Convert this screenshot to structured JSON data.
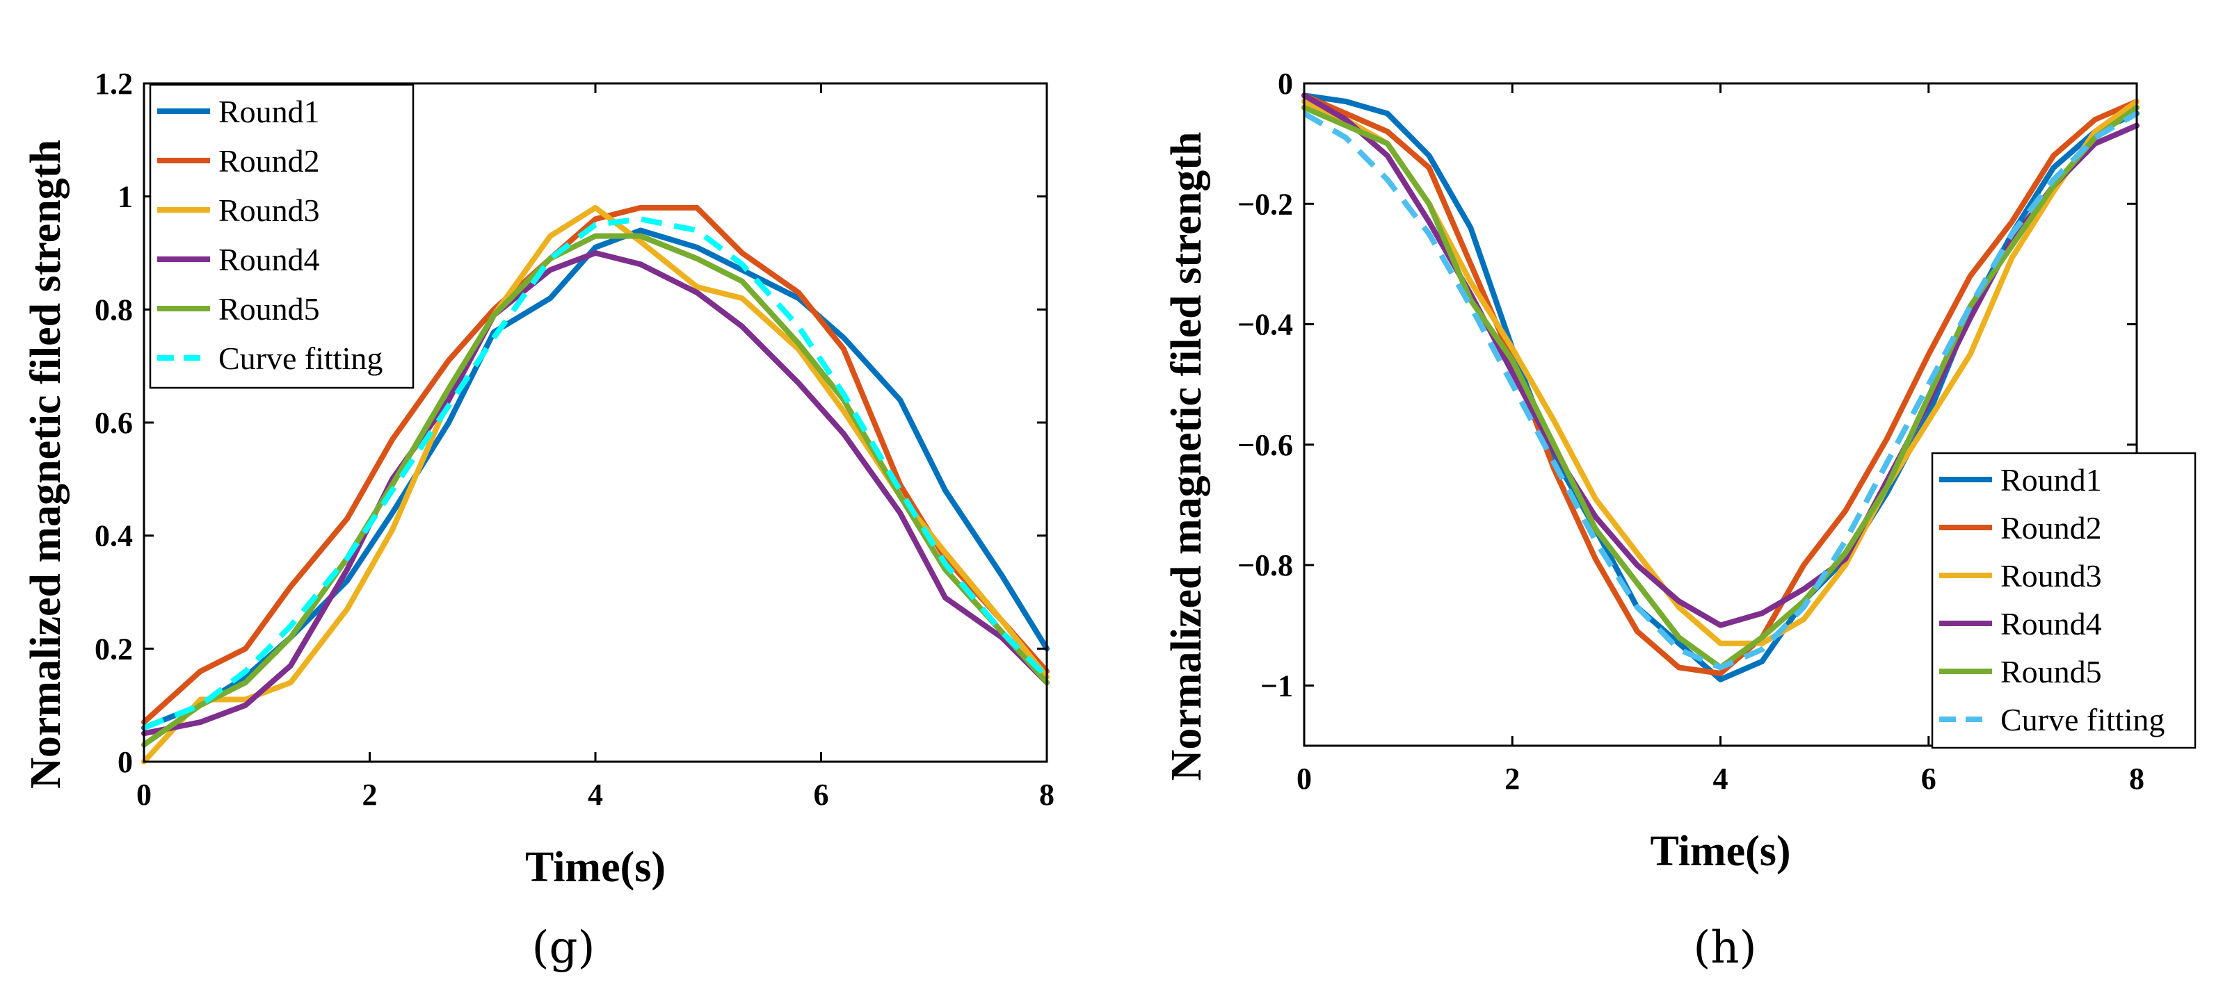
{
  "colors": {
    "round1": "#0072BD",
    "round2": "#D95319",
    "round3": "#EDB120",
    "round4": "#7E2F8E",
    "round5": "#77AC30"
  },
  "chart_data": [
    {
      "id": "g",
      "type": "line",
      "caption": "(g)",
      "xlabel": "Time(s)",
      "ylabel": "Normalized magnetic filed strength",
      "xlim": [
        0,
        8
      ],
      "ylim": [
        0,
        1.2
      ],
      "xticks": [
        0,
        2,
        4,
        6,
        8
      ],
      "xtick_labels": [
        "0",
        "2",
        "4",
        "6",
        "8"
      ],
      "yticks": [
        0,
        0.2,
        0.4,
        0.6,
        0.8,
        1,
        1.2
      ],
      "ytick_labels": [
        "0",
        "0.2",
        "0.4",
        "0.6",
        "0.8",
        "1",
        "1.2"
      ],
      "legend_position": "top-left",
      "series": [
        {
          "name": "Round1",
          "color": "#0072BD",
          "style": "solid",
          "x": [
            0,
            0.5,
            0.9,
            1.3,
            1.8,
            2.2,
            2.7,
            3.1,
            3.6,
            4.0,
            4.4,
            4.9,
            5.3,
            5.8,
            6.2,
            6.7,
            7.1,
            7.6,
            8.0
          ],
          "y": [
            0.06,
            0.1,
            0.15,
            0.22,
            0.32,
            0.44,
            0.6,
            0.76,
            0.82,
            0.91,
            0.94,
            0.91,
            0.87,
            0.82,
            0.75,
            0.64,
            0.48,
            0.33,
            0.2
          ]
        },
        {
          "name": "Round2",
          "color": "#D95319",
          "style": "solid",
          "x": [
            0,
            0.5,
            0.9,
            1.3,
            1.8,
            2.2,
            2.7,
            3.1,
            3.6,
            4.0,
            4.4,
            4.9,
            5.3,
            5.8,
            6.2,
            6.7,
            7.1,
            7.6,
            8.0
          ],
          "y": [
            0.07,
            0.16,
            0.2,
            0.31,
            0.43,
            0.57,
            0.71,
            0.8,
            0.89,
            0.96,
            0.98,
            0.98,
            0.9,
            0.83,
            0.73,
            0.49,
            0.36,
            0.25,
            0.16
          ]
        },
        {
          "name": "Round3",
          "color": "#EDB120",
          "style": "solid",
          "x": [
            0,
            0.5,
            0.9,
            1.3,
            1.8,
            2.2,
            2.7,
            3.1,
            3.6,
            4.0,
            4.4,
            4.9,
            5.3,
            5.8,
            6.2,
            6.7,
            7.1,
            7.6,
            8.0
          ],
          "y": [
            0.0,
            0.11,
            0.11,
            0.14,
            0.27,
            0.41,
            0.64,
            0.79,
            0.93,
            0.98,
            0.92,
            0.84,
            0.82,
            0.73,
            0.62,
            0.47,
            0.37,
            0.25,
            0.15
          ]
        },
        {
          "name": "Round4",
          "color": "#7E2F8E",
          "style": "solid",
          "x": [
            0,
            0.5,
            0.9,
            1.3,
            1.8,
            2.2,
            2.7,
            3.1,
            3.6,
            4.0,
            4.4,
            4.9,
            5.3,
            5.8,
            6.2,
            6.7,
            7.1,
            7.6,
            8.0
          ],
          "y": [
            0.05,
            0.07,
            0.1,
            0.17,
            0.34,
            0.5,
            0.64,
            0.79,
            0.87,
            0.9,
            0.88,
            0.83,
            0.77,
            0.67,
            0.58,
            0.44,
            0.29,
            0.22,
            0.14
          ]
        },
        {
          "name": "Round5",
          "color": "#77AC30",
          "style": "solid",
          "x": [
            0,
            0.5,
            0.9,
            1.3,
            1.8,
            2.2,
            2.7,
            3.1,
            3.6,
            4.0,
            4.4,
            4.9,
            5.3,
            5.8,
            6.2,
            6.7,
            7.1,
            7.6,
            8.0
          ],
          "y": [
            0.03,
            0.1,
            0.14,
            0.22,
            0.36,
            0.49,
            0.66,
            0.79,
            0.89,
            0.93,
            0.93,
            0.89,
            0.85,
            0.74,
            0.64,
            0.47,
            0.34,
            0.23,
            0.14
          ]
        },
        {
          "name": "Curve fitting",
          "color": "#00FFFF",
          "style": "dashed",
          "x": [
            0,
            0.5,
            0.9,
            1.3,
            1.8,
            2.2,
            2.7,
            3.1,
            3.6,
            4.0,
            4.4,
            4.9,
            5.3,
            5.8,
            6.2,
            6.7,
            7.1,
            7.6,
            8.0
          ],
          "y": [
            0.06,
            0.1,
            0.16,
            0.24,
            0.36,
            0.48,
            0.63,
            0.75,
            0.89,
            0.95,
            0.96,
            0.94,
            0.88,
            0.77,
            0.65,
            0.48,
            0.35,
            0.23,
            0.15
          ]
        }
      ]
    },
    {
      "id": "h",
      "type": "line",
      "caption": "(h)",
      "xlabel": "Time(s)",
      "ylabel": "Normalized magnetic filed strength",
      "xlim": [
        0,
        8
      ],
      "ylim": [
        -1.1,
        0
      ],
      "xticks": [
        0,
        2,
        4,
        6,
        8
      ],
      "xtick_labels": [
        "0",
        "2",
        "4",
        "6",
        "8"
      ],
      "yticks": [
        0,
        -0.2,
        -0.4,
        -0.6,
        -0.8,
        -1
      ],
      "ytick_labels": [
        "0",
        "−0.2",
        "−0.4",
        "−0.6",
        "−0.8",
        "−1"
      ],
      "legend_position": "bottom-right",
      "series": [
        {
          "name": "Round1",
          "color": "#0072BD",
          "style": "solid",
          "x": [
            0,
            0.4,
            0.8,
            1.2,
            1.6,
            2.0,
            2.4,
            2.8,
            3.2,
            3.6,
            4.0,
            4.4,
            4.8,
            5.2,
            5.6,
            6.0,
            6.4,
            6.8,
            7.2,
            7.6,
            8.0
          ],
          "y": [
            -0.02,
            -0.03,
            -0.05,
            -0.12,
            -0.24,
            -0.44,
            -0.62,
            -0.74,
            -0.87,
            -0.93,
            -0.99,
            -0.96,
            -0.86,
            -0.79,
            -0.68,
            -0.55,
            -0.38,
            -0.25,
            -0.14,
            -0.08,
            -0.05
          ]
        },
        {
          "name": "Round2",
          "color": "#D95319",
          "style": "solid",
          "x": [
            0,
            0.4,
            0.8,
            1.2,
            1.6,
            2.0,
            2.4,
            2.8,
            3.2,
            3.6,
            4.0,
            4.4,
            4.8,
            5.2,
            5.6,
            6.0,
            6.4,
            6.8,
            7.2,
            7.6,
            8.0
          ],
          "y": [
            -0.02,
            -0.05,
            -0.08,
            -0.14,
            -0.3,
            -0.46,
            -0.64,
            -0.79,
            -0.91,
            -0.97,
            -0.98,
            -0.92,
            -0.8,
            -0.71,
            -0.59,
            -0.45,
            -0.32,
            -0.23,
            -0.12,
            -0.06,
            -0.03
          ]
        },
        {
          "name": "Round3",
          "color": "#EDB120",
          "style": "solid",
          "x": [
            0,
            0.4,
            0.8,
            1.2,
            1.6,
            2.0,
            2.4,
            2.8,
            3.2,
            3.6,
            4.0,
            4.4,
            4.8,
            5.2,
            5.6,
            6.0,
            6.4,
            6.8,
            7.2,
            7.6,
            8.0
          ],
          "y": [
            -0.03,
            -0.06,
            -0.1,
            -0.2,
            -0.33,
            -0.44,
            -0.56,
            -0.69,
            -0.78,
            -0.87,
            -0.93,
            -0.93,
            -0.89,
            -0.8,
            -0.67,
            -0.56,
            -0.45,
            -0.29,
            -0.18,
            -0.08,
            -0.03
          ]
        },
        {
          "name": "Round4",
          "color": "#7E2F8E",
          "style": "solid",
          "x": [
            0,
            0.4,
            0.8,
            1.2,
            1.6,
            2.0,
            2.4,
            2.8,
            3.2,
            3.6,
            4.0,
            4.4,
            4.8,
            5.2,
            5.6,
            6.0,
            6.4,
            6.8,
            7.2,
            7.6,
            8.0
          ],
          "y": [
            -0.02,
            -0.06,
            -0.12,
            -0.23,
            -0.35,
            -0.48,
            -0.61,
            -0.72,
            -0.8,
            -0.86,
            -0.9,
            -0.88,
            -0.84,
            -0.79,
            -0.66,
            -0.53,
            -0.39,
            -0.26,
            -0.17,
            -0.1,
            -0.07
          ]
        },
        {
          "name": "Round5",
          "color": "#77AC30",
          "style": "solid",
          "x": [
            0,
            0.4,
            0.8,
            1.2,
            1.6,
            2.0,
            2.4,
            2.8,
            3.2,
            3.6,
            4.0,
            4.4,
            4.8,
            5.2,
            5.6,
            6.0,
            6.4,
            6.8,
            7.2,
            7.6,
            8.0
          ],
          "y": [
            -0.04,
            -0.07,
            -0.1,
            -0.2,
            -0.36,
            -0.46,
            -0.6,
            -0.74,
            -0.83,
            -0.92,
            -0.97,
            -0.92,
            -0.86,
            -0.78,
            -0.67,
            -0.52,
            -0.37,
            -0.27,
            -0.17,
            -0.09,
            -0.04
          ]
        },
        {
          "name": "Curve fitting",
          "color": "#4DBEEE",
          "style": "dashed",
          "x": [
            0,
            0.4,
            0.8,
            1.2,
            1.6,
            2.0,
            2.4,
            2.8,
            3.2,
            3.6,
            4.0,
            4.4,
            4.8,
            5.2,
            5.6,
            6.0,
            6.4,
            6.8,
            7.2,
            7.6,
            8.0
          ],
          "y": [
            -0.05,
            -0.09,
            -0.16,
            -0.25,
            -0.37,
            -0.5,
            -0.63,
            -0.76,
            -0.87,
            -0.94,
            -0.97,
            -0.94,
            -0.87,
            -0.76,
            -0.63,
            -0.5,
            -0.37,
            -0.25,
            -0.16,
            -0.09,
            -0.05
          ]
        }
      ]
    }
  ]
}
